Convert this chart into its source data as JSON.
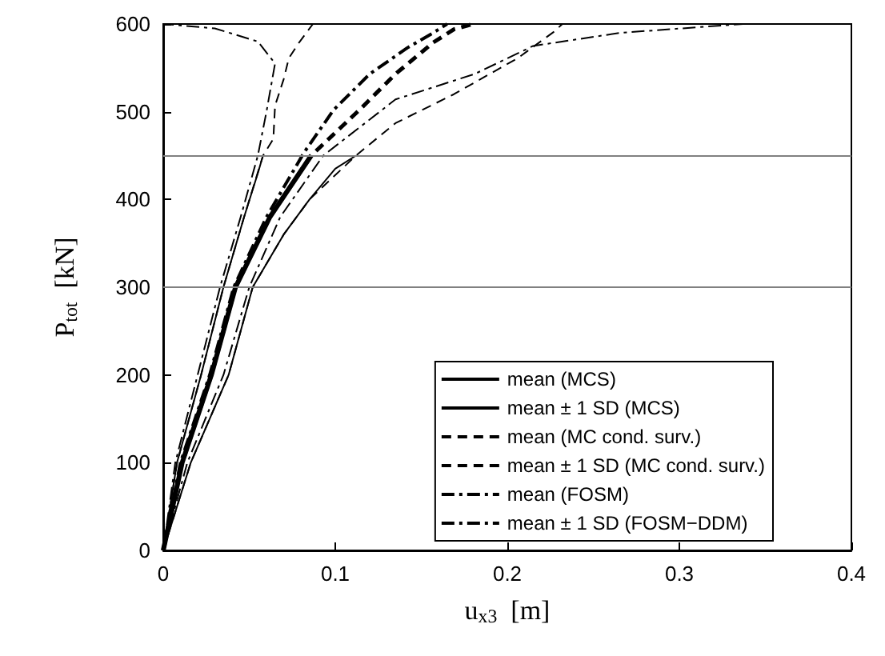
{
  "chart_data": {
    "type": "line",
    "xlabel": "u$_{x3}$  [m]",
    "ylabel": "P$_{tot}$  [kN]",
    "xlim": [
      0,
      0.4
    ],
    "xticks": [
      0,
      0.1,
      0.2,
      0.3,
      0.4
    ],
    "ylim": [
      0,
      600
    ],
    "yticks": [
      0,
      100,
      200,
      300,
      400,
      500,
      600
    ],
    "grid": false,
    "legend": "bottom right",
    "marker": "none",
    "ref_lines": [
      {
        "axis": "y",
        "value": 300,
        "label": null,
        "color": "#808080"
      },
      {
        "axis": "y",
        "value": 450,
        "label": null,
        "color": "#808080"
      }
    ],
    "series": [
      {
        "name": "mean (MCS)",
        "color": "#000000",
        "line_style": "solid",
        "x": [
          0,
          0.011,
          0.028,
          0.042,
          0.062,
          0.086
        ],
        "values": [
          0,
          100,
          200,
          300,
          380,
          450
        ]
      },
      {
        "name": "mean ± 1 SD (MCS)",
        "color": "#000000",
        "line_style": "solid",
        "x": [
          0,
          0.008,
          0.022,
          0.035,
          0.047,
          0.055,
          0.058,
          null,
          0,
          0.016,
          0.038,
          0.052,
          0.07,
          0.085,
          0.1,
          0.112
        ],
        "values": [
          0,
          100,
          200,
          300,
          380,
          430,
          450,
          null,
          0,
          100,
          200,
          300,
          360,
          400,
          435,
          450
        ]
      },
      {
        "name": "mean (MC cond. surv.)",
        "color": "#000000",
        "line_style": "dashed",
        "x": [
          0,
          0.011,
          0.028,
          0.042,
          0.062,
          0.086,
          0.114,
          0.135,
          0.157,
          0.169,
          0.18
        ],
        "values": [
          0,
          100,
          200,
          300,
          380,
          450,
          502,
          543,
          579,
          594,
          600
        ]
      },
      {
        "name": "mean ± 1 SD (MC cond. surv.)",
        "color": "#000000",
        "line_style": "dashed",
        "x": [
          0,
          0.008,
          0.022,
          0.035,
          0.047,
          0.058,
          0.064,
          0.065,
          0.07,
          0.073,
          0.079,
          0.087,
          null,
          0,
          0.016,
          0.038,
          0.052,
          0.07,
          0.085,
          0.112,
          0.135,
          0.169,
          0.206,
          0.227,
          0.232
        ],
        "values": [
          0,
          100,
          200,
          300,
          380,
          450,
          469,
          507,
          537,
          561,
          579,
          600,
          null,
          0,
          100,
          200,
          300,
          360,
          400,
          450,
          487,
          520,
          561,
          591,
          600
        ]
      },
      {
        "name": "mean (FOSM)",
        "color": "#000000",
        "line_style": "dashdot",
        "x": [
          0,
          0.01,
          0.027,
          0.041,
          0.06,
          0.082,
          0.099,
          0.12,
          0.142,
          0.157,
          0.165
        ],
        "values": [
          0,
          100,
          200,
          300,
          380,
          454,
          502,
          543,
          573,
          590,
          600
        ]
      },
      {
        "name": "mean ± 1 SD (FOSM−DDM)",
        "color": "#000000",
        "line_style": "dashdot",
        "x": [
          0,
          0.007,
          0.02,
          0.033,
          0.045,
          0.055,
          0.06,
          0.065,
          0.055,
          0.03,
          0,
          null,
          0,
          0.014,
          0.035,
          0.05,
          0.068,
          0.093,
          0.135,
          0.181,
          0.215,
          0.266,
          0.337
        ],
        "values": [
          0,
          100,
          200,
          300,
          380,
          450,
          500,
          555,
          580,
          595,
          600,
          null,
          0,
          100,
          200,
          300,
          380,
          450,
          514,
          543,
          575,
          590,
          600
        ]
      }
    ]
  }
}
